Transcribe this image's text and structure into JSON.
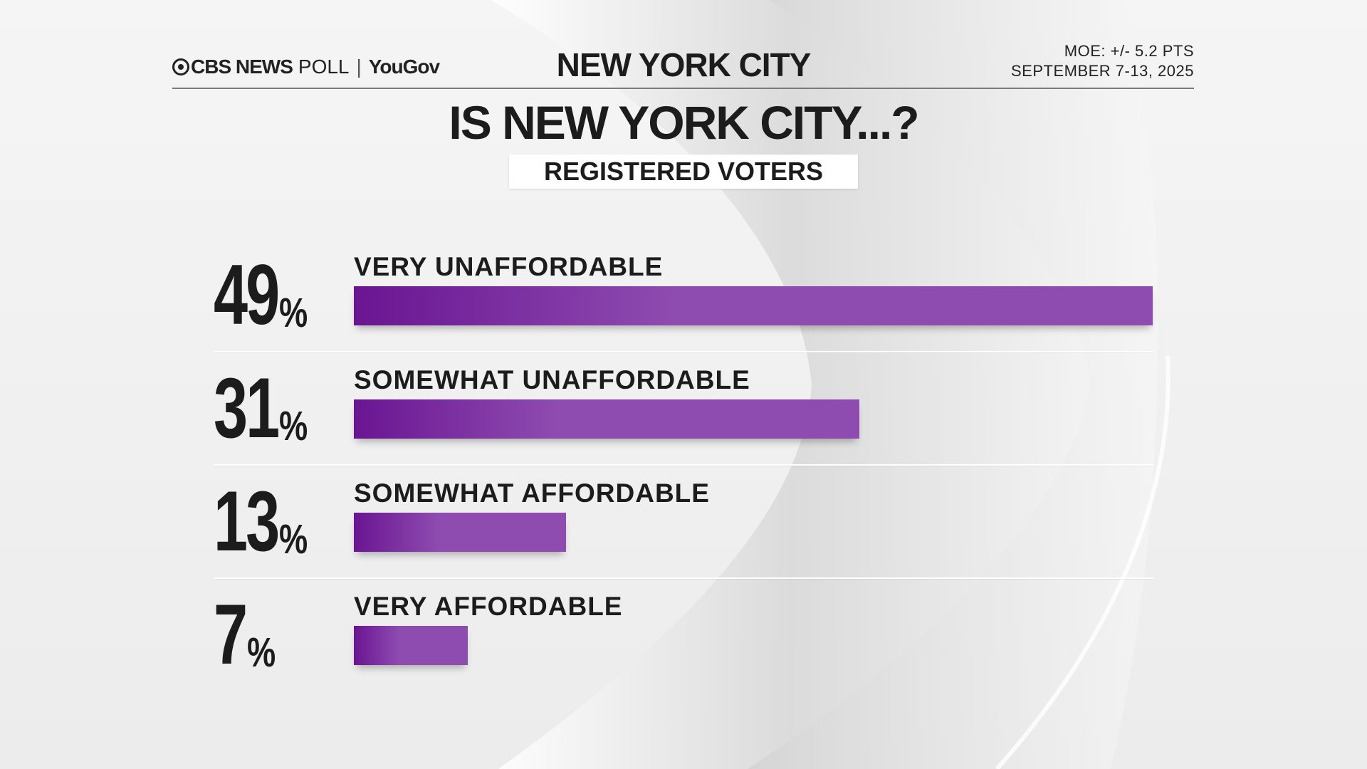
{
  "header": {
    "brand": "CBS NEWS",
    "brand_light": "POLL",
    "separator": "|",
    "partner": "YouGov",
    "title": "NEW YORK CITY",
    "moe": "MOE: +/- 5.2 PTS",
    "dates": "SEPTEMBER 7-13, 2025"
  },
  "question": "IS NEW YORK CITY...?",
  "subgroup": "REGISTERED VOTERS",
  "colors": {
    "bar_dark": "#6a1592",
    "bar_light": "#8e4bb0",
    "text": "#1c1c1c"
  },
  "chart_data": {
    "type": "bar",
    "orientation": "horizontal",
    "title": "IS NEW YORK CITY...?",
    "categories": [
      "VERY UNAFFORDABLE",
      "SOMEWHAT UNAFFORDABLE",
      "SOMEWHAT AFFORDABLE",
      "VERY AFFORDABLE"
    ],
    "values": [
      49,
      31,
      13,
      7
    ],
    "value_labels": [
      "49",
      "31",
      "13",
      "7"
    ],
    "unit": "%",
    "xlim": [
      0,
      49
    ],
    "grid": false,
    "legend": "none"
  }
}
